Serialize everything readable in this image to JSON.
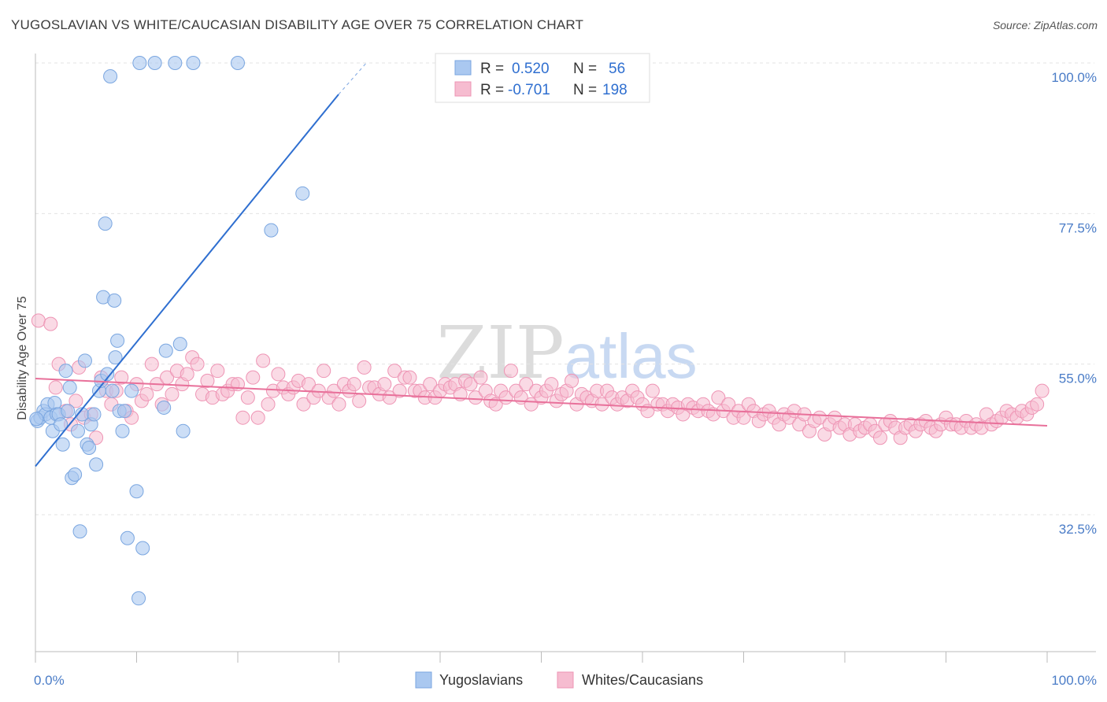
{
  "title": "YUGOSLAVIAN VS WHITE/CAUCASIAN DISABILITY AGE OVER 75 CORRELATION CHART",
  "source": "Source: ZipAtlas.com",
  "watermark": "ZIPatlas",
  "colors": {
    "blue_fill": "#aac8f0",
    "blue_stroke": "#7aa6e0",
    "blue_line": "#2f6fd0",
    "pink_fill": "#f6bcd0",
    "pink_stroke": "#ee94b4",
    "pink_line": "#e8709a",
    "grid": "#e3e3e3",
    "axis_tick_text": "#4a7cc7"
  },
  "legend": {
    "rows": [
      {
        "r_label": "R =",
        "r_value": "0.520",
        "n_label": "N =",
        "n_value": "56",
        "color": "#aac8f0"
      },
      {
        "r_label": "R =",
        "r_value": "-0.701",
        "n_label": "N =",
        "n_value": "198",
        "color": "#f6bcd0"
      }
    ]
  },
  "bottom_legend": [
    "Yugoslavians",
    "Whites/Caucasians"
  ],
  "chart_data": {
    "type": "scatter",
    "xlabel": "",
    "ylabel": "Disability Age Over 75",
    "x_tick_labels": [
      "0.0%",
      "100.0%"
    ],
    "y_tick_labels": [
      "100.0%",
      "77.5%",
      "55.0%",
      "32.5%"
    ],
    "y_ticks": [
      100.0,
      77.5,
      55.0,
      32.5
    ],
    "xlim": [
      0,
      100
    ],
    "ylim": [
      10,
      102
    ],
    "grid": "horizontal dashed",
    "series": [
      {
        "name": "Yugoslavians",
        "color": "#aac8f0",
        "trend": {
          "x": [
            0,
            33
          ],
          "y": [
            41.5,
            95.5
          ],
          "dashed_to": [
            33,
            33.1,
            102
          ]
        },
        "points": [
          [
            0.2,
            46.5
          ],
          [
            0.5,
            47
          ],
          [
            0.8,
            48
          ],
          [
            1.0,
            47.5
          ],
          [
            1.2,
            49
          ],
          [
            1.5,
            47
          ],
          [
            1.7,
            45
          ],
          [
            1.9,
            49.2
          ],
          [
            2.1,
            47.5
          ],
          [
            2.3,
            47.5
          ],
          [
            2.5,
            46
          ],
          [
            2.7,
            43
          ],
          [
            3.0,
            54
          ],
          [
            3.2,
            48
          ],
          [
            3.4,
            51.5
          ],
          [
            3.6,
            38
          ],
          [
            3.9,
            38.5
          ],
          [
            4.2,
            45
          ],
          [
            4.4,
            30
          ],
          [
            4.6,
            47.5
          ],
          [
            4.9,
            55.5
          ],
          [
            5.1,
            43
          ],
          [
            5.3,
            42.5
          ],
          [
            5.5,
            46
          ],
          [
            5.8,
            47.5
          ],
          [
            6.0,
            40
          ],
          [
            6.3,
            51
          ],
          [
            6.5,
            52.5
          ],
          [
            6.7,
            65
          ],
          [
            6.9,
            76
          ],
          [
            7.1,
            53.5
          ],
          [
            7.4,
            98
          ],
          [
            7.6,
            51
          ],
          [
            7.8,
            64.5
          ],
          [
            7.9,
            56
          ],
          [
            8.1,
            58.5
          ],
          [
            8.3,
            48
          ],
          [
            8.6,
            45
          ],
          [
            8.8,
            48
          ],
          [
            9.1,
            29
          ],
          [
            9.5,
            51
          ],
          [
            10.0,
            36
          ],
          [
            10.2,
            20
          ],
          [
            10.3,
            100
          ],
          [
            10.6,
            27.5
          ],
          [
            11.8,
            100
          ],
          [
            12.7,
            48.5
          ],
          [
            12.9,
            57
          ],
          [
            13.8,
            100
          ],
          [
            14.3,
            58
          ],
          [
            14.6,
            45
          ],
          [
            15.6,
            100
          ],
          [
            20.0,
            100
          ],
          [
            23.3,
            75
          ],
          [
            26.4,
            80.5
          ],
          [
            0.1,
            46.8
          ]
        ]
      },
      {
        "name": "Whites/Caucasians",
        "color": "#f6bcd0",
        "trend": {
          "x": [
            0,
            100
          ],
          "y": [
            53,
            45.5
          ]
        },
        "points": [
          [
            0.3,
            61.5
          ],
          [
            1.5,
            61
          ],
          [
            2.0,
            51.5
          ],
          [
            2.3,
            55
          ],
          [
            3.0,
            48
          ],
          [
            3.5,
            46
          ],
          [
            4.0,
            49.5
          ],
          [
            4.3,
            54.5
          ],
          [
            4.8,
            47
          ],
          [
            5.5,
            47.5
          ],
          [
            6.0,
            44
          ],
          [
            6.5,
            53
          ],
          [
            7.0,
            51
          ],
          [
            7.5,
            49
          ],
          [
            8.0,
            51
          ],
          [
            8.5,
            53
          ],
          [
            9.0,
            48
          ],
          [
            9.5,
            47
          ],
          [
            10.0,
            52
          ],
          [
            10.5,
            49.5
          ],
          [
            11.0,
            50.5
          ],
          [
            11.5,
            55
          ],
          [
            12.0,
            52
          ],
          [
            12.5,
            49
          ],
          [
            13.0,
            53
          ],
          [
            13.5,
            50.5
          ],
          [
            14.0,
            54
          ],
          [
            14.5,
            52
          ],
          [
            15.0,
            53.5
          ],
          [
            15.5,
            56
          ],
          [
            16.0,
            55
          ],
          [
            16.5,
            50.5
          ],
          [
            17.0,
            52.5
          ],
          [
            17.5,
            50
          ],
          [
            18.0,
            54
          ],
          [
            18.5,
            50.5
          ],
          [
            19.0,
            51
          ],
          [
            19.5,
            52
          ],
          [
            20.0,
            52
          ],
          [
            20.5,
            47
          ],
          [
            21.0,
            50
          ],
          [
            21.5,
            53
          ],
          [
            22.0,
            47
          ],
          [
            22.5,
            55.5
          ],
          [
            23.0,
            49
          ],
          [
            23.5,
            51
          ],
          [
            24.0,
            53.5
          ],
          [
            24.5,
            51.5
          ],
          [
            25.0,
            50.5
          ],
          [
            25.5,
            51.5
          ],
          [
            26.0,
            52.5
          ],
          [
            26.5,
            49
          ],
          [
            27.0,
            52
          ],
          [
            27.5,
            50
          ],
          [
            28.0,
            51
          ],
          [
            28.5,
            54
          ],
          [
            29.0,
            50
          ],
          [
            29.5,
            51
          ],
          [
            30.0,
            49
          ],
          [
            30.5,
            52
          ],
          [
            31.0,
            51
          ],
          [
            31.5,
            52
          ],
          [
            32.0,
            49.5
          ],
          [
            32.5,
            54.5
          ],
          [
            33.0,
            51.5
          ],
          [
            33.5,
            51.5
          ],
          [
            34.0,
            50.5
          ],
          [
            34.5,
            52
          ],
          [
            35.0,
            50
          ],
          [
            35.5,
            54
          ],
          [
            36.0,
            51
          ],
          [
            36.5,
            53
          ],
          [
            37.0,
            53
          ],
          [
            37.5,
            51
          ],
          [
            38.0,
            51
          ],
          [
            38.5,
            50
          ],
          [
            39.0,
            52
          ],
          [
            39.5,
            50
          ],
          [
            40.0,
            51
          ],
          [
            40.5,
            52
          ],
          [
            41.0,
            51.5
          ],
          [
            41.5,
            52
          ],
          [
            42.0,
            50.5
          ],
          [
            42.5,
            52.5
          ],
          [
            43.0,
            52
          ],
          [
            43.5,
            50
          ],
          [
            44.0,
            53
          ],
          [
            44.5,
            51
          ],
          [
            45.0,
            49.5
          ],
          [
            45.5,
            49
          ],
          [
            46.0,
            51
          ],
          [
            46.5,
            50
          ],
          [
            47.0,
            54
          ],
          [
            47.5,
            51
          ],
          [
            48.0,
            50
          ],
          [
            48.5,
            52
          ],
          [
            49.0,
            49
          ],
          [
            49.5,
            51
          ],
          [
            50.0,
            50
          ],
          [
            50.5,
            51
          ],
          [
            51.0,
            52
          ],
          [
            51.5,
            49.5
          ],
          [
            52.0,
            50.5
          ],
          [
            52.5,
            51
          ],
          [
            53.0,
            52.5
          ],
          [
            53.5,
            49
          ],
          [
            54.0,
            50.5
          ],
          [
            54.5,
            50
          ],
          [
            55.0,
            49.5
          ],
          [
            55.5,
            51
          ],
          [
            56.0,
            49
          ],
          [
            56.5,
            51
          ],
          [
            57.0,
            50
          ],
          [
            57.5,
            49
          ],
          [
            58.0,
            50
          ],
          [
            58.5,
            49.5
          ],
          [
            59.0,
            51
          ],
          [
            59.5,
            50
          ],
          [
            60.0,
            49
          ],
          [
            60.5,
            48
          ],
          [
            61.0,
            51
          ],
          [
            61.5,
            49
          ],
          [
            62.0,
            49
          ],
          [
            62.5,
            48
          ],
          [
            63.0,
            49
          ],
          [
            63.5,
            48.5
          ],
          [
            64.0,
            47.5
          ],
          [
            64.5,
            49
          ],
          [
            65.0,
            48.5
          ],
          [
            65.5,
            48
          ],
          [
            66.0,
            49
          ],
          [
            66.5,
            48
          ],
          [
            67.0,
            47.5
          ],
          [
            67.5,
            50
          ],
          [
            68.0,
            48
          ],
          [
            68.5,
            49
          ],
          [
            69.0,
            47
          ],
          [
            69.5,
            48
          ],
          [
            70.0,
            47
          ],
          [
            70.5,
            49
          ],
          [
            71.0,
            48
          ],
          [
            71.5,
            46.5
          ],
          [
            72.0,
            47.5
          ],
          [
            72.5,
            48
          ],
          [
            73.0,
            47
          ],
          [
            73.5,
            46
          ],
          [
            74.0,
            47.5
          ],
          [
            74.5,
            47
          ],
          [
            75.0,
            48
          ],
          [
            75.5,
            46
          ],
          [
            76.0,
            47.5
          ],
          [
            76.5,
            45
          ],
          [
            77.0,
            46.5
          ],
          [
            77.5,
            47
          ],
          [
            78.0,
            44.5
          ],
          [
            78.5,
            46
          ],
          [
            79.0,
            47
          ],
          [
            79.5,
            45.5
          ],
          [
            80.0,
            46
          ],
          [
            80.5,
            44.5
          ],
          [
            81.0,
            46
          ],
          [
            81.5,
            45
          ],
          [
            82.0,
            45.5
          ],
          [
            82.5,
            46
          ],
          [
            83.0,
            45
          ],
          [
            83.5,
            44
          ],
          [
            84.0,
            46
          ],
          [
            84.5,
            46.5
          ],
          [
            85.0,
            45.5
          ],
          [
            85.5,
            44
          ],
          [
            86.0,
            45.5
          ],
          [
            86.5,
            46
          ],
          [
            87.0,
            45
          ],
          [
            87.5,
            46
          ],
          [
            88.0,
            46.5
          ],
          [
            88.5,
            45.5
          ],
          [
            89.0,
            45
          ],
          [
            89.5,
            46
          ],
          [
            90.0,
            47
          ],
          [
            90.5,
            46
          ],
          [
            91.0,
            46
          ],
          [
            91.5,
            45.5
          ],
          [
            92.0,
            46.5
          ],
          [
            92.5,
            45.5
          ],
          [
            93.0,
            46
          ],
          [
            93.5,
            45.5
          ],
          [
            94.0,
            47.5
          ],
          [
            94.5,
            46
          ],
          [
            95.0,
            46.5
          ],
          [
            95.5,
            47
          ],
          [
            96.0,
            48
          ],
          [
            96.5,
            47.5
          ],
          [
            97.0,
            47
          ],
          [
            97.5,
            48
          ],
          [
            98.0,
            47.5
          ],
          [
            98.5,
            48.5
          ],
          [
            99.0,
            49
          ],
          [
            99.5,
            51
          ]
        ]
      }
    ]
  }
}
